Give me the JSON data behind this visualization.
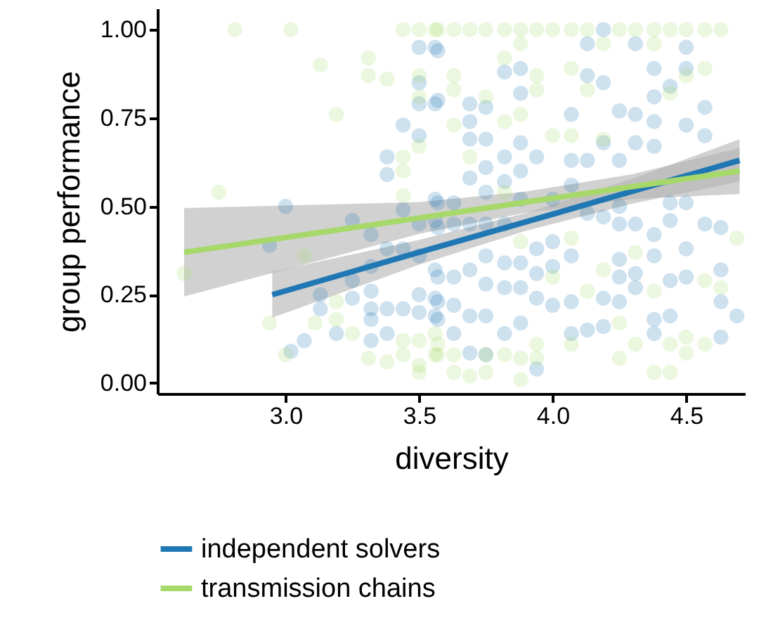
{
  "chart_data": {
    "type": "scatter",
    "xlabel": "diversity",
    "ylabel": "group performance",
    "xlim": [
      2.52,
      4.72
    ],
    "ylim": [
      -0.03,
      1.06
    ],
    "xticks": [
      {
        "value": 3,
        "label": "3.0"
      },
      {
        "value": 3.5,
        "label": "3.5"
      },
      {
        "value": 4,
        "label": "4.0"
      },
      {
        "value": 4.5,
        "label": "4.5"
      }
    ],
    "yticks": [
      {
        "value": 0,
        "label": "0.00"
      },
      {
        "value": 0.25,
        "label": "0.25"
      },
      {
        "value": 0.5,
        "label": "0.50"
      },
      {
        "value": 0.75,
        "label": "0.75"
      },
      {
        "value": 1,
        "label": "1.00"
      }
    ],
    "grid": false,
    "legend": "bottom",
    "series": [
      {
        "marker": "circle",
        "color": "#1f78b4",
        "x": [
          2.94,
          3.0,
          3.02,
          3.07,
          3.13,
          3.13,
          3.19,
          3.25,
          3.25,
          3.25,
          3.32,
          3.32,
          3.32,
          3.32,
          3.32,
          3.32,
          3.38,
          3.38,
          3.38,
          3.38,
          3.38,
          3.44,
          3.44,
          3.44,
          3.44,
          3.5,
          3.5,
          3.5,
          3.5,
          3.5,
          3.5,
          3.5,
          3.5,
          3.56,
          3.56,
          3.56,
          3.56,
          3.56,
          3.56,
          3.56,
          3.57,
          3.57,
          3.57,
          3.57,
          3.57,
          3.57,
          3.57,
          3.63,
          3.63,
          3.63,
          3.63,
          3.63,
          3.69,
          3.69,
          3.69,
          3.69,
          3.69,
          3.69,
          3.69,
          3.69,
          3.75,
          3.75,
          3.75,
          3.75,
          3.75,
          3.75,
          3.75,
          3.75,
          3.75,
          3.82,
          3.82,
          3.82,
          3.82,
          3.82,
          3.82,
          3.82,
          3.88,
          3.88,
          3.88,
          3.88,
          3.88,
          3.88,
          3.88,
          3.88,
          3.94,
          3.94,
          3.94,
          3.94,
          3.94,
          4.0,
          4.0,
          4.0,
          4.0,
          4.07,
          4.07,
          4.07,
          4.07,
          4.07,
          4.07,
          4.13,
          4.13,
          4.13,
          4.13,
          4.13,
          4.19,
          4.19,
          4.19,
          4.19,
          4.19,
          4.19,
          4.25,
          4.25,
          4.25,
          4.25,
          4.25,
          4.25,
          4.25,
          4.31,
          4.31,
          4.31,
          4.31,
          4.31,
          4.31,
          4.38,
          4.38,
          4.38,
          4.38,
          4.38,
          4.38,
          4.38,
          4.38,
          4.44,
          4.44,
          4.44,
          4.44,
          4.44,
          4.5,
          4.5,
          4.5,
          4.5,
          4.5,
          4.5,
          4.57,
          4.57,
          4.57,
          4.63,
          4.63,
          4.63,
          4.63,
          4.69
        ],
        "values": [
          0.39,
          0.5,
          0.09,
          0.12,
          0.25,
          0.21,
          0.14,
          0.46,
          0.29,
          0.24,
          0.42,
          0.33,
          0.26,
          0.21,
          0.18,
          0.12,
          0.64,
          0.59,
          0.38,
          0.21,
          0.14,
          0.73,
          0.49,
          0.38,
          0.21,
          0.95,
          0.85,
          0.79,
          0.7,
          0.45,
          0.36,
          0.25,
          0.2,
          0.95,
          0.79,
          0.52,
          0.46,
          0.32,
          0.24,
          0.19,
          0.94,
          0.8,
          0.51,
          0.44,
          0.3,
          0.23,
          0.18,
          0.51,
          0.45,
          0.3,
          0.22,
          0.14,
          0.79,
          0.74,
          0.69,
          0.58,
          0.45,
          0.32,
          0.19,
          0.085,
          0.78,
          0.69,
          0.61,
          0.54,
          0.45,
          0.36,
          0.28,
          0.19,
          0.08,
          0.88,
          0.64,
          0.57,
          0.45,
          0.34,
          0.27,
          0.14,
          0.89,
          0.82,
          0.68,
          0.6,
          0.52,
          0.34,
          0.27,
          0.17,
          0.64,
          0.38,
          0.31,
          0.24,
          0.04,
          0.52,
          0.4,
          0.33,
          0.22,
          0.76,
          0.63,
          0.56,
          0.36,
          0.23,
          0.14,
          0.96,
          0.87,
          0.63,
          0.48,
          0.15,
          1.0,
          0.85,
          0.68,
          0.47,
          0.24,
          0.16,
          0.77,
          0.63,
          0.5,
          0.45,
          0.35,
          0.3,
          0.23,
          0.96,
          0.76,
          0.68,
          0.45,
          0.31,
          0.27,
          0.89,
          0.81,
          0.74,
          0.67,
          0.42,
          0.36,
          0.18,
          0.14,
          0.84,
          0.51,
          0.46,
          0.29,
          0.19,
          0.95,
          0.89,
          0.73,
          0.51,
          0.38,
          0.3,
          0.78,
          0.7,
          0.45,
          0.44,
          0.32,
          0.23,
          0.13,
          0.19
        ]
      },
      {
        "marker": "circle",
        "color": "#a6d96a",
        "x": [
          2.62,
          2.75,
          2.81,
          2.94,
          3.0,
          3.02,
          3.07,
          3.11,
          3.13,
          3.19,
          3.19,
          3.19,
          3.25,
          3.31,
          3.31,
          3.31,
          3.38,
          3.38,
          3.44,
          3.44,
          3.44,
          3.44,
          3.44,
          3.44,
          3.5,
          3.5,
          3.5,
          3.5,
          3.5,
          3.5,
          3.5,
          3.56,
          3.56,
          3.56,
          3.57,
          3.57,
          3.57,
          3.63,
          3.63,
          3.63,
          3.63,
          3.63,
          3.63,
          3.69,
          3.69,
          3.69,
          3.75,
          3.75,
          3.75,
          3.75,
          3.82,
          3.82,
          3.82,
          3.82,
          3.82,
          3.88,
          3.88,
          3.88,
          3.88,
          3.88,
          3.88,
          3.94,
          3.94,
          3.94,
          3.94,
          3.94,
          4.0,
          4.0,
          4.0,
          4.07,
          4.07,
          4.07,
          4.07,
          4.07,
          4.13,
          4.13,
          4.13,
          4.19,
          4.19,
          4.19,
          4.25,
          4.25,
          4.25,
          4.31,
          4.31,
          4.31,
          4.38,
          4.38,
          4.38,
          4.38,
          4.44,
          4.44,
          4.44,
          4.44,
          4.5,
          4.5,
          4.5,
          4.5,
          4.57,
          4.57,
          4.57,
          4.57,
          4.63,
          4.63,
          4.69
        ],
        "values": [
          0.31,
          0.54,
          1.0,
          0.17,
          0.08,
          1.0,
          0.36,
          0.17,
          0.9,
          0.76,
          0.23,
          0.18,
          0.14,
          0.92,
          0.87,
          0.07,
          0.86,
          0.06,
          1.0,
          0.64,
          0.6,
          0.53,
          0.12,
          0.08,
          1.0,
          0.87,
          0.81,
          0.67,
          0.12,
          0.05,
          0.03,
          1.0,
          0.14,
          0.08,
          1.0,
          0.11,
          0.08,
          1.0,
          0.87,
          0.83,
          0.73,
          0.08,
          0.03,
          1.0,
          0.64,
          0.02,
          1.0,
          0.81,
          0.08,
          0.03,
          1.0,
          0.92,
          0.74,
          0.54,
          0.08,
          1.0,
          0.96,
          0.76,
          0.4,
          0.07,
          0.01,
          1.0,
          0.87,
          0.83,
          0.11,
          0.07,
          1.0,
          0.7,
          0.3,
          1.0,
          0.89,
          0.7,
          0.41,
          0.11,
          1.0,
          0.83,
          0.26,
          0.96,
          0.69,
          0.32,
          1.0,
          0.17,
          0.07,
          1.0,
          0.37,
          0.11,
          1.0,
          0.96,
          0.26,
          0.03,
          1.0,
          0.82,
          0.11,
          0.03,
          1.0,
          0.87,
          0.13,
          0.085,
          1.0,
          0.89,
          0.29,
          0.11,
          1.0,
          0.27,
          0.41
        ]
      },
      {
        "type": "line",
        "name": "independent solvers",
        "color": "#1f78b4",
        "x": [
          2.95,
          3.5,
          3.9,
          4.3,
          4.7
        ],
        "values": [
          0.25,
          0.37,
          0.456,
          0.543,
          0.63
        ],
        "lower": [
          0.185,
          0.335,
          0.431,
          0.508,
          0.57
        ],
        "upper": [
          0.315,
          0.405,
          0.481,
          0.578,
          0.69
        ]
      },
      {
        "type": "line",
        "name": "transmission chains",
        "color": "#a6d96a",
        "x": [
          2.62,
          3.5,
          3.9,
          4.3,
          4.7
        ],
        "values": [
          0.37,
          0.467,
          0.512,
          0.556,
          0.6
        ],
        "lower": [
          0.245,
          0.422,
          0.482,
          0.521,
          0.535
        ],
        "upper": [
          0.495,
          0.512,
          0.542,
          0.591,
          0.665
        ]
      }
    ]
  }
}
